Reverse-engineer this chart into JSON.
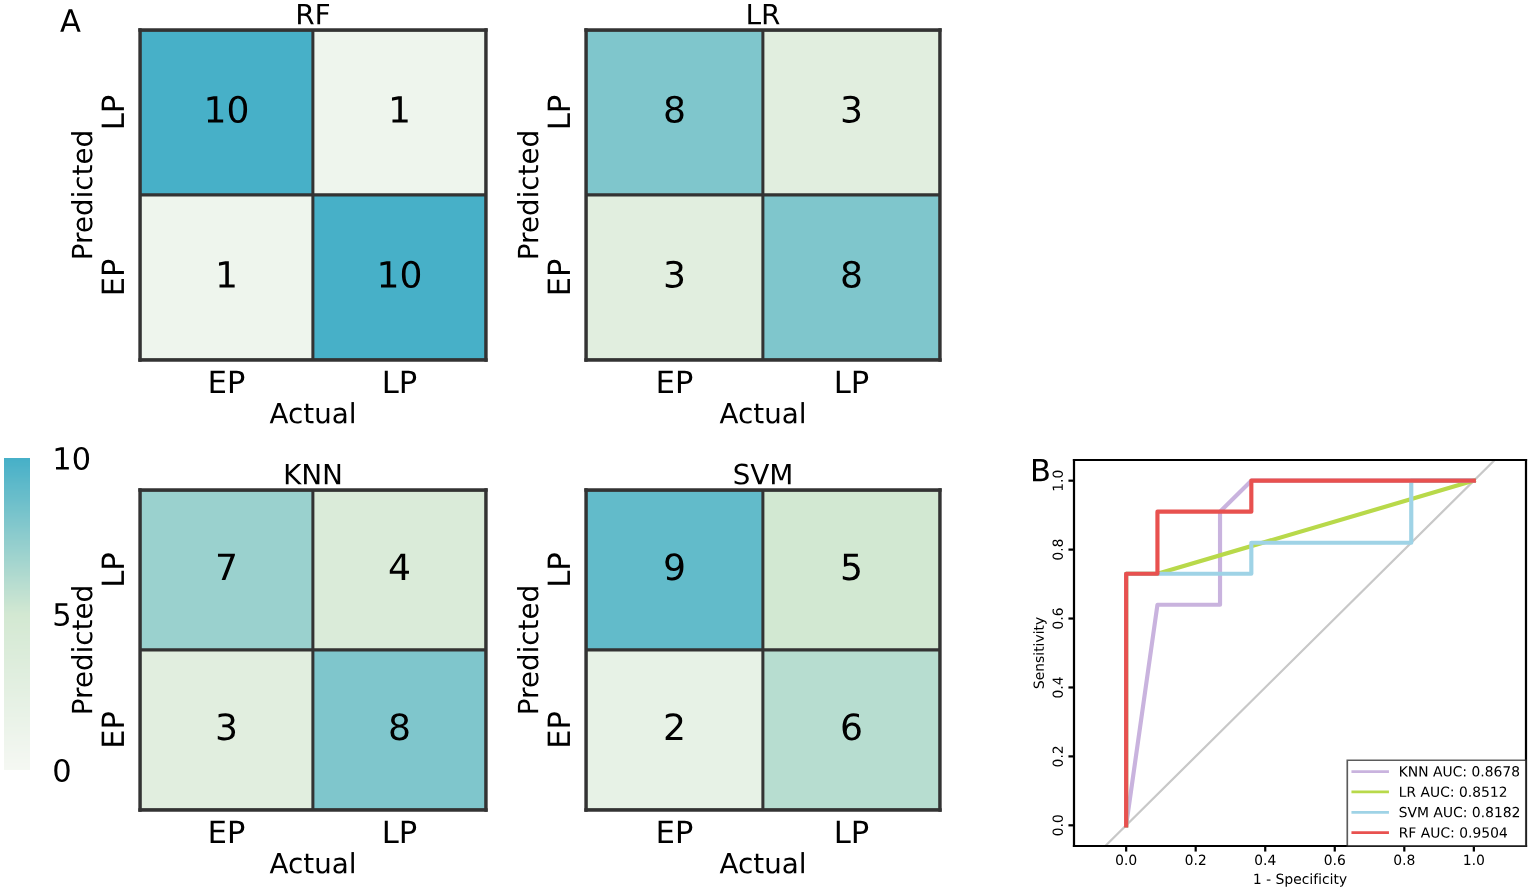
{
  "chart_data": [
    {
      "type": "heatmap",
      "title": "RF",
      "xlabel": "Actual",
      "ylabel": "Predicted",
      "annotations": [
        "A"
      ],
      "categories": [
        "EP",
        "LP"
      ],
      "y_categories": [
        "LP",
        "EP"
      ],
      "data_labels": true,
      "cells": [
        [
          10,
          1
        ],
        [
          1,
          10
        ]
      ]
    },
    {
      "type": "heatmap",
      "title": "LR",
      "xlabel": "Actual",
      "ylabel": "Predicted",
      "categories": [
        "EP",
        "LP"
      ],
      "y_categories": [
        "LP",
        "EP"
      ],
      "data_labels": true,
      "cells": [
        [
          8,
          3
        ],
        [
          3,
          8
        ]
      ]
    },
    {
      "type": "heatmap",
      "title": "KNN",
      "xlabel": "Actual",
      "ylabel": "Predicted",
      "categories": [
        "EP",
        "LP"
      ],
      "y_categories": [
        "LP",
        "EP"
      ],
      "data_labels": true,
      "clim": [
        0,
        10
      ],
      "cticks": [
        0,
        5,
        10
      ],
      "cells": [
        [
          7,
          4
        ],
        [
          3,
          8
        ]
      ]
    },
    {
      "type": "heatmap",
      "title": "SVM",
      "xlabel": "Actual",
      "ylabel": "Predicted",
      "categories": [
        "EP",
        "LP"
      ],
      "y_categories": [
        "LP",
        "EP"
      ],
      "data_labels": true,
      "cells": [
        [
          9,
          5
        ],
        [
          2,
          6
        ]
      ]
    },
    {
      "type": "line",
      "xlabel": "1 - Specificity",
      "ylabel": "Sensitivity",
      "annotations": [
        "B"
      ],
      "xlim": [
        -0.15,
        1.15
      ],
      "ylim": [
        -0.06,
        1.06
      ],
      "xticks": [
        {
          "value": 0,
          "label": "0.0"
        },
        0.2,
        0.4,
        0.6,
        0.8,
        {
          "value": 1,
          "label": "1.0"
        }
      ],
      "yticks": [
        {
          "value": 0,
          "label": "0.0"
        },
        0.2,
        0.4,
        0.6,
        0.8,
        {
          "value": 1,
          "label": "1.0"
        }
      ],
      "grid": false,
      "legend": "bottom right",
      "marker": "none",
      "series": [
        {
          "color": "#c8c8c8",
          "x": [
            -0.06,
            1.06
          ],
          "values": [
            -0.06,
            1.06
          ]
        },
        {
          "name": "KNN AUC: 0.8678",
          "color": "#c9b3de",
          "x": [
            0,
            0.09,
            0.27,
            0.27,
            0.36,
            1
          ],
          "values": [
            0,
            0.64,
            0.64,
            0.91,
            1,
            1
          ]
        },
        {
          "name": "LR AUC: 0.8512",
          "color": "#b8d94a",
          "x": [
            0,
            0,
            0.09,
            1
          ],
          "values": [
            0,
            0.73,
            0.73,
            1
          ]
        },
        {
          "name": "SVM AUC: 0.8182",
          "color": "#9fd3e6",
          "x": [
            0,
            0,
            0.36,
            0.36,
            0.82,
            0.82,
            1
          ],
          "values": [
            0,
            0.73,
            0.73,
            0.82,
            0.82,
            1,
            1
          ]
        },
        {
          "name": "RF AUC: 0.9504",
          "color": "#e8514f",
          "x": [
            0,
            0,
            0.09,
            0.09,
            0.36,
            0.36,
            1
          ],
          "values": [
            0,
            0.73,
            0.73,
            0.91,
            0.91,
            1,
            1
          ]
        }
      ]
    }
  ]
}
